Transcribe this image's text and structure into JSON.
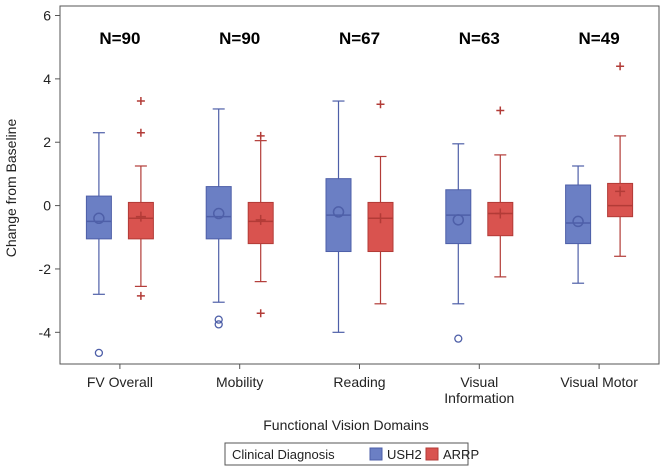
{
  "chart_data": {
    "type": "boxplot",
    "xlabel": "Functional Vision Domains",
    "ylabel": "Change from Baseline",
    "ylim": [
      -5,
      6.3
    ],
    "yticks": [
      -4,
      -2,
      0,
      2,
      4,
      6
    ],
    "legend_title": "Clinical Diagnosis",
    "colors": {
      "USH2": {
        "fill": "#6b7fc4",
        "stroke": "#4e5fa8"
      },
      "ARRP": {
        "fill": "#d9534f",
        "stroke": "#b23b37"
      }
    },
    "categories": [
      {
        "lines": [
          "FV Overall"
        ],
        "n_label": "N=90"
      },
      {
        "lines": [
          "Mobility"
        ],
        "n_label": "N=90"
      },
      {
        "lines": [
          "Reading"
        ],
        "n_label": "N=67"
      },
      {
        "lines": [
          "Visual",
          "Information"
        ],
        "n_label": "N=63"
      },
      {
        "lines": [
          "Visual Motor"
        ],
        "n_label": "N=49"
      }
    ],
    "series": [
      {
        "name": "USH2",
        "mean_marker": "circle",
        "boxes": [
          {
            "min": -2.8,
            "q1": -1.05,
            "median": -0.5,
            "q3": 0.3,
            "max": 2.3,
            "mean": -0.4,
            "outliers": [
              -4.65
            ]
          },
          {
            "min": -3.05,
            "q1": -1.05,
            "median": -0.35,
            "q3": 0.6,
            "max": 3.05,
            "mean": -0.25,
            "outliers": [
              -3.6,
              -3.75
            ]
          },
          {
            "min": -4.0,
            "q1": -1.45,
            "median": -0.3,
            "q3": 0.85,
            "max": 3.3,
            "mean": -0.2,
            "outliers": []
          },
          {
            "min": -3.1,
            "q1": -1.2,
            "median": -0.3,
            "q3": 0.5,
            "max": 1.95,
            "mean": -0.45,
            "outliers": [
              -4.2
            ]
          },
          {
            "min": -2.45,
            "q1": -1.2,
            "median": -0.55,
            "q3": 0.65,
            "max": 1.25,
            "mean": -0.5,
            "outliers": []
          }
        ]
      },
      {
        "name": "ARRP",
        "mean_marker": "plus",
        "boxes": [
          {
            "min": -2.55,
            "q1": -1.05,
            "median": -0.4,
            "q3": 0.1,
            "max": 1.25,
            "mean": -0.35,
            "outliers": [
              3.3,
              2.3,
              -2.85
            ]
          },
          {
            "min": -2.4,
            "q1": -1.2,
            "median": -0.5,
            "q3": 0.1,
            "max": 2.05,
            "mean": -0.45,
            "outliers": [
              2.2,
              -3.4
            ]
          },
          {
            "min": -3.1,
            "q1": -1.45,
            "median": -0.4,
            "q3": 0.1,
            "max": 1.55,
            "mean": -0.4,
            "outliers": [
              3.2
            ]
          },
          {
            "min": -2.25,
            "q1": -0.95,
            "median": -0.25,
            "q3": 0.1,
            "max": 1.6,
            "mean": -0.25,
            "outliers": [
              3.0
            ]
          },
          {
            "min": -1.6,
            "q1": -0.35,
            "median": 0.0,
            "q3": 0.7,
            "max": 2.2,
            "mean": 0.45,
            "outliers": [
              4.4
            ]
          }
        ]
      }
    ]
  }
}
